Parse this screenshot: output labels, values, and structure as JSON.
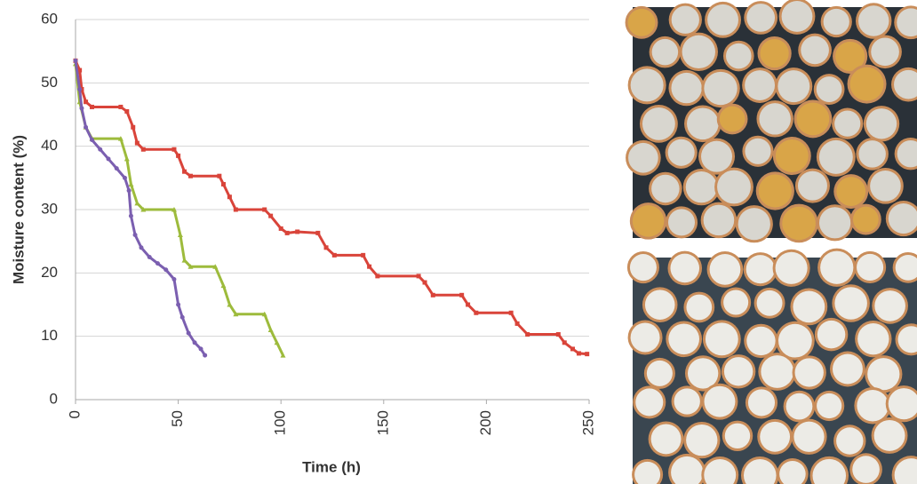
{
  "chart_data": {
    "type": "line",
    "y_label": "Moisture content (%)",
    "x_label": "Time (h)",
    "xlim": [
      0,
      250
    ],
    "xticks": [
      0,
      50,
      100,
      150,
      200,
      250
    ],
    "ylim": [
      0,
      60
    ],
    "yticks": [
      0,
      10,
      20,
      30,
      40,
      50,
      60
    ],
    "grid": true,
    "series": [
      {
        "color": "#d9443a",
        "marker": "square",
        "x": [
          0,
          2,
          3,
          5,
          8,
          22,
          25,
          28,
          30,
          33,
          48,
          50,
          53,
          56,
          70,
          72,
          75,
          78,
          92,
          95,
          100,
          103,
          108,
          118,
          122,
          126,
          140,
          143,
          147,
          167,
          170,
          174,
          188,
          191,
          195,
          212,
          215,
          220,
          235,
          238,
          242,
          245,
          249
        ],
        "values": [
          53.5,
          52,
          49,
          47,
          46.2,
          46.2,
          45.5,
          43,
          40.5,
          39.5,
          39.5,
          38.5,
          36,
          35.3,
          35.3,
          34,
          32,
          30,
          30,
          29,
          27,
          26.3,
          26.5,
          26.3,
          24,
          22.8,
          22.8,
          21,
          19.5,
          19.5,
          18.5,
          16.5,
          16.5,
          15,
          13.7,
          13.7,
          12,
          10.3,
          10.3,
          9,
          8,
          7.3,
          7.2
        ]
      },
      {
        "color": "#9dbb3c",
        "marker": "triangle",
        "x": [
          0,
          2,
          5,
          8,
          22,
          25,
          27,
          30,
          33,
          48,
          51,
          53,
          56,
          68,
          72,
          75,
          78,
          92,
          95,
          98,
          101
        ],
        "values": [
          53,
          47,
          43,
          41.2,
          41.2,
          38,
          34,
          31,
          30,
          30,
          26,
          22,
          21,
          21,
          18,
          15,
          13.5,
          13.5,
          11,
          9,
          7
        ]
      },
      {
        "color": "#7b5fb0",
        "marker": "circle",
        "x": [
          0,
          2,
          3,
          5,
          8,
          12,
          16,
          20,
          24,
          26,
          27,
          29,
          32,
          36,
          40,
          44,
          48,
          50,
          52,
          55,
          58,
          61,
          63
        ],
        "values": [
          53.5,
          49,
          46,
          43,
          41,
          39.5,
          38,
          36.5,
          35,
          33,
          29,
          26,
          24,
          22.5,
          21.5,
          20.5,
          19,
          15,
          13,
          10.5,
          9,
          8,
          7
        ]
      }
    ]
  }
}
